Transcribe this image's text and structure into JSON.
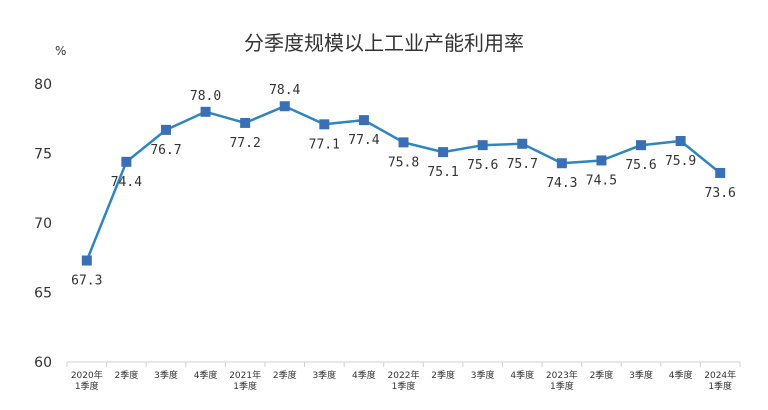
{
  "chart_data": {
    "type": "line",
    "title": "分季度规模以上工业产能利用率",
    "ylabel": "%",
    "xlabel": "",
    "ylim": [
      60,
      80
    ],
    "yticks": [
      "60",
      "65",
      "70",
      "75",
      "80"
    ],
    "grid": false,
    "categories": [
      [
        "2020年",
        "1季度"
      ],
      [
        "2季度"
      ],
      [
        "3季度"
      ],
      [
        "4季度"
      ],
      [
        "2021年",
        "1季度"
      ],
      [
        "2季度"
      ],
      [
        "3季度"
      ],
      [
        "4季度"
      ],
      [
        "2022年",
        "1季度"
      ],
      [
        "2季度"
      ],
      [
        "3季度"
      ],
      [
        "4季度"
      ],
      [
        "2023年",
        "1季度"
      ],
      [
        "2季度"
      ],
      [
        "3季度"
      ],
      [
        "4季度"
      ],
      [
        "2024年",
        "1季度"
      ]
    ],
    "series": [
      {
        "values": [
          67.3,
          74.4,
          76.7,
          78.0,
          77.2,
          78.4,
          77.1,
          77.4,
          75.8,
          75.1,
          75.6,
          75.7,
          74.3,
          74.5,
          75.6,
          75.9,
          73.6
        ],
        "labels": [
          "67.3",
          "74.4",
          "76.7",
          "78.0",
          "77.2",
          "78.4",
          "77.1",
          "77.4",
          "75.8",
          "75.1",
          "75.6",
          "75.7",
          "74.3",
          "74.5",
          "75.6",
          "75.9",
          "73.6"
        ],
        "color": "#2E86C1",
        "marker_color": "#3A6FB5"
      }
    ]
  }
}
